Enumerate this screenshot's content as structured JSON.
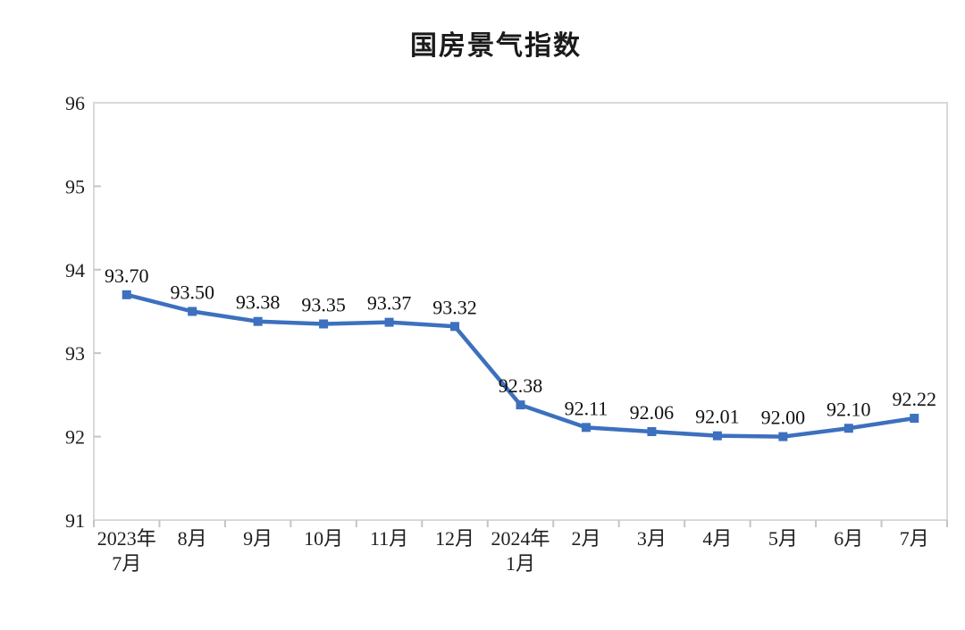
{
  "chart_data": {
    "type": "line",
    "title": "国房景气指数",
    "categories": [
      "2023年\n7月",
      "8月",
      "9月",
      "10月",
      "11月",
      "12月",
      "2024年\n1月",
      "2月",
      "3月",
      "4月",
      "5月",
      "6月",
      "7月"
    ],
    "values": [
      93.7,
      93.5,
      93.38,
      93.35,
      93.37,
      93.32,
      92.38,
      92.11,
      92.06,
      92.01,
      92.0,
      92.1,
      92.22
    ],
    "data_labels": [
      "93.70",
      "93.50",
      "93.38",
      "93.35",
      "93.37",
      "93.32",
      "92.38",
      "92.11",
      "92.06",
      "92.01",
      "92.00",
      "92.10",
      "92.22"
    ],
    "xlabel": "",
    "ylabel": "",
    "ylim": [
      91,
      96
    ],
    "y_ticks": [
      91,
      92,
      93,
      94,
      95,
      96
    ],
    "grid": false,
    "legend_position": "none",
    "marker": "square",
    "colors": {
      "line": "#3D70BE",
      "marker": "#3D70BE",
      "axis_border": "#d9d9d9",
      "tick": "#c4c4c4",
      "axis_text": "#1f1f1f",
      "data_label_text": "#111111",
      "background": "#ffffff"
    }
  }
}
